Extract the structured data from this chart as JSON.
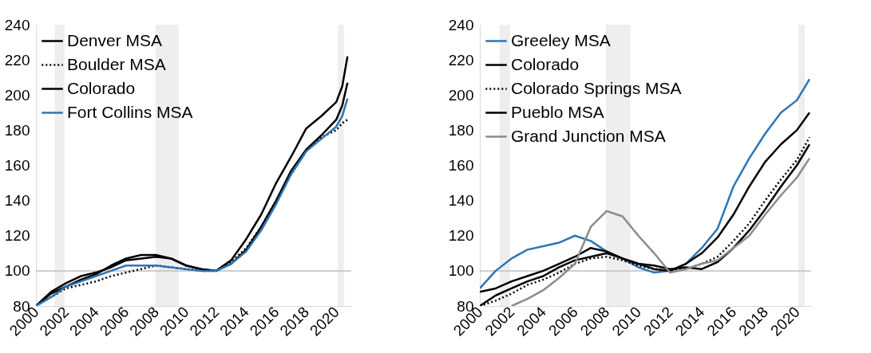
{
  "chart_data": [
    {
      "type": "line",
      "legend": "top left",
      "grid": false,
      "marker": "none",
      "xlim": [
        2000,
        2021
      ],
      "xticks": [
        2000,
        2002,
        2004,
        2006,
        2008,
        2010,
        2012,
        2014,
        2016,
        2018,
        2020
      ],
      "ylim": [
        80,
        240
      ],
      "yticks": [
        80,
        100,
        120,
        140,
        160,
        180,
        200,
        220,
        240
      ],
      "x": [
        2000,
        2001,
        2002,
        2003,
        2004,
        2005,
        2006,
        2007,
        2008,
        2009,
        2010,
        2011,
        2012,
        2013,
        2014,
        2015,
        2016,
        2017,
        2018,
        2019,
        2020,
        2020.4,
        2020.75
      ],
      "series": [
        {
          "name": "Denver MSA",
          "color": "#000000",
          "line_style": "solid",
          "values": [
            80,
            88,
            93,
            97,
            99,
            102,
            106,
            107,
            108,
            107,
            103,
            101,
            100,
            106,
            118,
            132,
            150,
            165,
            181,
            188,
            196,
            205,
            222
          ]
        },
        {
          "name": "Boulder MSA",
          "color": "#000000",
          "line_style": "dotted",
          "values": [
            80,
            85,
            90,
            92,
            94,
            97,
            99,
            101,
            103,
            102,
            101,
            100,
            100,
            105,
            113,
            125,
            140,
            155,
            168,
            176,
            180,
            184,
            186
          ]
        },
        {
          "name": "Colorado",
          "color": "#000000",
          "line_style": "solid",
          "values": [
            80,
            87,
            91,
            95,
            98,
            103,
            107,
            109,
            109,
            107,
            103,
            101,
            100,
            104,
            112,
            125,
            140,
            157,
            169,
            177,
            186,
            194,
            207
          ]
        },
        {
          "name": "Fort Collins MSA",
          "color": "#2e75b6",
          "line_style": "solid",
          "values": [
            80,
            85,
            91,
            94,
            97,
            100,
            103,
            103,
            103,
            102,
            101,
            100,
            100,
            104,
            111,
            123,
            138,
            155,
            168,
            175,
            182,
            188,
            198
          ]
        }
      ],
      "ref_lines": [
        {
          "axis": "y",
          "value": 100,
          "color": "#bfbfbf"
        }
      ],
      "bands": [
        {
          "axis": "x",
          "from": 2001.25,
          "to": 2001.9,
          "color": "#eeeeee"
        },
        {
          "axis": "x",
          "from": 2007.95,
          "to": 2009.5,
          "color": "#eeeeee"
        },
        {
          "axis": "x",
          "from": 2020.1,
          "to": 2020.5,
          "color": "#eeeeee"
        }
      ]
    },
    {
      "type": "line",
      "legend": "top left",
      "grid": false,
      "marker": "none",
      "xlim": [
        2000,
        2020.9
      ],
      "xticks": [
        2000,
        2002,
        2004,
        2006,
        2008,
        2010,
        2012,
        2014,
        2016,
        2018,
        2020
      ],
      "ylim": [
        80,
        240
      ],
      "yticks": [
        80,
        100,
        120,
        140,
        160,
        180,
        200,
        220,
        240
      ],
      "x": [
        2000,
        2001,
        2002,
        2003,
        2004,
        2005,
        2006,
        2007,
        2008,
        2009,
        2010,
        2011,
        2012,
        2013,
        2014,
        2015,
        2016,
        2017,
        2018,
        2019,
        2020,
        2020.8
      ],
      "series": [
        {
          "name": "Greeley MSA",
          "color": "#2e75b6",
          "line_style": "solid",
          "values": [
            90,
            100,
            107,
            112,
            114,
            116,
            120,
            117,
            111,
            107,
            102,
            99,
            100,
            104,
            113,
            124,
            148,
            164,
            178,
            190,
            197,
            209
          ]
        },
        {
          "name": "Colorado",
          "color": "#000000",
          "line_style": "solid",
          "values": [
            80,
            86,
            90,
            94,
            97,
            102,
            106,
            108,
            110,
            107,
            104,
            101,
            100,
            104,
            110,
            119,
            132,
            148,
            162,
            172,
            180,
            190
          ]
        },
        {
          "name": "Colorado Springs MSA",
          "color": "#000000",
          "line_style": "dotted",
          "values": [
            80,
            83,
            87,
            92,
            95,
            99,
            104,
            107,
            108,
            106,
            103,
            101,
            100,
            101,
            104,
            108,
            117,
            127,
            140,
            152,
            163,
            176
          ]
        },
        {
          "name": "Pueblo MSA",
          "color": "#000000",
          "line_style": "solid",
          "values": [
            88,
            90,
            94,
            97,
            100,
            104,
            108,
            113,
            111,
            107,
            104,
            103,
            101,
            102,
            101,
            105,
            113,
            123,
            135,
            148,
            160,
            172
          ]
        },
        {
          "name": "Grand Junction MSA",
          "color": "#8c8c8c",
          "line_style": "solid",
          "values": [
            null,
            null,
            80,
            84,
            89,
            96,
            104,
            125,
            134,
            131,
            120,
            110,
            99,
            101,
            104,
            106,
            113,
            120,
            132,
            143,
            153,
            164
          ]
        }
      ],
      "ref_lines": [
        {
          "axis": "y",
          "value": 100,
          "color": "#bfbfbf"
        }
      ],
      "bands": [
        {
          "axis": "x",
          "from": 2001.25,
          "to": 2001.9,
          "color": "#eeeeee"
        },
        {
          "axis": "x",
          "from": 2007.95,
          "to": 2009.5,
          "color": "#eeeeee"
        },
        {
          "axis": "x",
          "from": 2020.1,
          "to": 2020.5,
          "color": "#eeeeee"
        }
      ]
    }
  ]
}
